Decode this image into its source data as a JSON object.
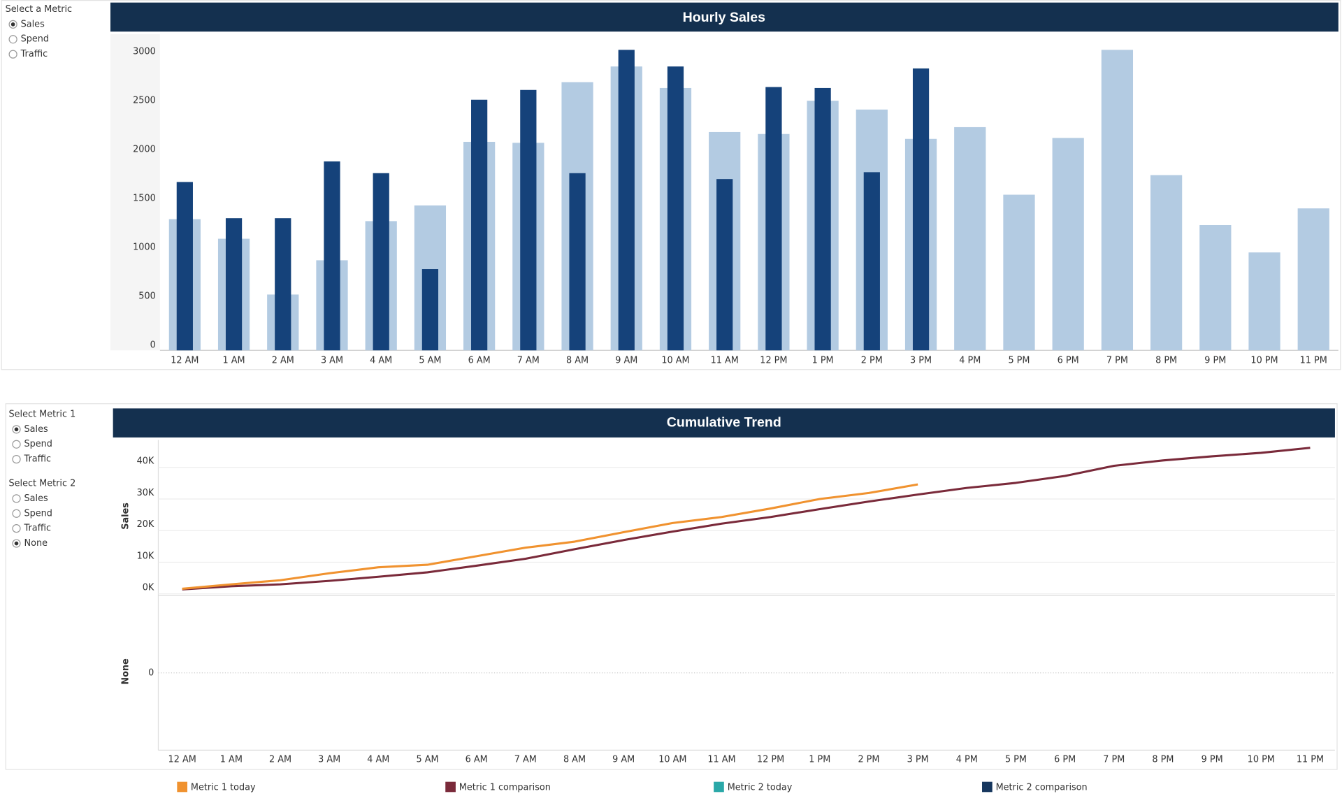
{
  "controls": {
    "metric": {
      "label": "Select a Metric",
      "options": [
        "Sales",
        "Spend",
        "Traffic"
      ],
      "selected": 0
    },
    "metric1": {
      "label": "Select Metric 1",
      "options": [
        "Sales",
        "Spend",
        "Traffic"
      ],
      "selected": 0
    },
    "metric2": {
      "label": "Select Metric 2",
      "options": [
        "Sales",
        "Spend",
        "Traffic",
        "None"
      ],
      "selected": 3
    }
  },
  "chart_data": [
    {
      "type": "bar",
      "title": "Hourly Sales",
      "categories": [
        "12 AM",
        "1 AM",
        "2 AM",
        "3 AM",
        "4 AM",
        "5 AM",
        "6 AM",
        "7 AM",
        "8 AM",
        "9 AM",
        "10 AM",
        "11 AM",
        "12 PM",
        "1 PM",
        "2 PM",
        "3 PM",
        "4 PM",
        "5 PM",
        "6 PM",
        "7 PM",
        "8 PM",
        "9 PM",
        "10 PM",
        "11 PM"
      ],
      "series": [
        {
          "color": "#b3cbe2",
          "values": [
            1340,
            1140,
            570,
            920,
            1320,
            1480,
            2130,
            2120,
            2740,
            2900,
            2680,
            2230,
            2210,
            2550,
            2460,
            2160,
            2280,
            1590,
            2170,
            3070,
            1790,
            1280,
            1000,
            1450
          ]
        },
        {
          "color": "#15427a",
          "values": [
            1720,
            1350,
            1350,
            1930,
            1810,
            830,
            2560,
            2660,
            1810,
            3070,
            2900,
            1750,
            2690,
            2680,
            1820,
            2880,
            null,
            null,
            null,
            null,
            null,
            null,
            null,
            null
          ]
        }
      ],
      "ylim": [
        0,
        3230
      ],
      "yticks": [
        0,
        500,
        1000,
        1500,
        2000,
        2500,
        3000
      ]
    },
    {
      "type": "line",
      "title": "Cumulative Trend",
      "ylabel": "Sales",
      "categories": [
        "12 AM",
        "1 AM",
        "2 AM",
        "3 AM",
        "4 AM",
        "5 AM",
        "6 AM",
        "7 AM",
        "8 AM",
        "9 AM",
        "10 AM",
        "11 AM",
        "12 PM",
        "1 PM",
        "2 PM",
        "3 PM",
        "4 PM",
        "5 PM",
        "6 PM",
        "7 PM",
        "8 PM",
        "9 PM",
        "10 PM",
        "11 PM"
      ],
      "series": [
        {
          "name": "Metric 1 today",
          "color": "#f0922f",
          "values": [
            1600,
            3000,
            4300,
            6500,
            8400,
            9200,
            11900,
            14600,
            16500,
            19500,
            22400,
            24300,
            27000,
            30000,
            31900,
            34600,
            null,
            null,
            null,
            null,
            null,
            null,
            null,
            null
          ]
        },
        {
          "name": "Metric 1 comparison",
          "color": "#7a2a3a",
          "values": [
            1400,
            2400,
            3000,
            4100,
            5400,
            6800,
            8900,
            11100,
            14100,
            17000,
            19700,
            22200,
            24300,
            26800,
            29200,
            31400,
            33500,
            35100,
            37300,
            40500,
            42200,
            43500,
            44600,
            46200
          ]
        },
        {
          "name": "Metric 2 today",
          "color": "#2aa8a8",
          "values": [
            null,
            null,
            null,
            null,
            null,
            null,
            null,
            null,
            null,
            null,
            null,
            null,
            null,
            null,
            null,
            null,
            null,
            null,
            null,
            null,
            null,
            null,
            null,
            null
          ]
        },
        {
          "name": "Metric 2 comparison",
          "color": "#16375e",
          "values": [
            null,
            null,
            null,
            null,
            null,
            null,
            null,
            null,
            null,
            null,
            null,
            null,
            null,
            null,
            null,
            null,
            null,
            null,
            null,
            null,
            null,
            null,
            null,
            null
          ]
        }
      ],
      "ylim": [
        -540,
        48650
      ],
      "yticks": [
        {
          "value": 0,
          "label": "0K"
        },
        {
          "value": 10000,
          "label": "10K"
        },
        {
          "value": 20000,
          "label": "20K"
        },
        {
          "value": 30000,
          "label": "30K"
        },
        {
          "value": 40000,
          "label": "40K"
        }
      ],
      "grid": true,
      "lower_pane": {
        "ylabel": "None",
        "ylim": [
          -1,
          1
        ],
        "yticks": [
          0
        ]
      }
    }
  ]
}
